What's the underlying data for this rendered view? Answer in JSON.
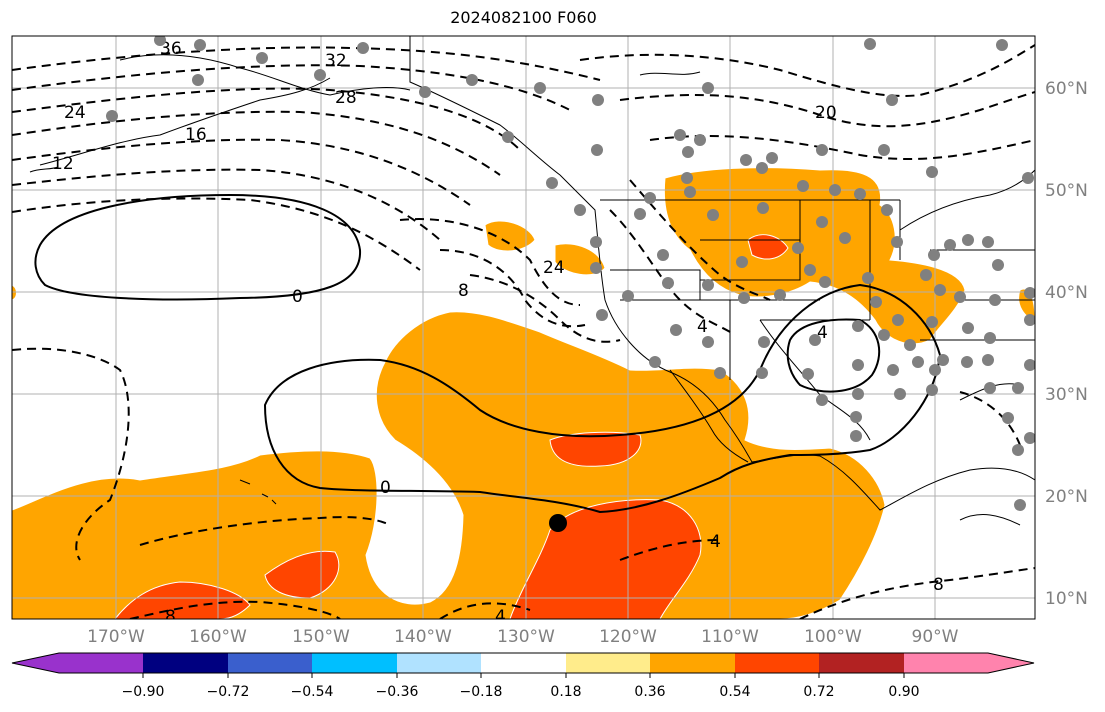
{
  "title": "2024082100 F060",
  "map": {
    "lon_labels": [
      "170°W",
      "160°W",
      "150°W",
      "140°W",
      "130°W",
      "120°W",
      "110°W",
      "100°W",
      "90°W"
    ],
    "lat_labels": [
      "60°N",
      "50°N",
      "40°N",
      "30°N",
      "20°N",
      "10°N"
    ],
    "contour_labels": [
      "36",
      "32",
      "28",
      "24",
      "12",
      "16",
      "20",
      "0",
      "8",
      "24",
      "4",
      "4",
      "0",
      "4",
      "8",
      "8",
      "4"
    ]
  },
  "colorbar": {
    "colors": [
      "#9932cc",
      "#000080",
      "#3a5fcd",
      "#00bfff",
      "#b0e2ff",
      "#ffffff",
      "#ffec8b",
      "#ffa500",
      "#ff4500",
      "#b22222",
      "#ff83ad"
    ],
    "tick_labels": [
      "−0.90",
      "−0.72",
      "−0.54",
      "−0.36",
      "−0.18",
      "0.18",
      "0.36",
      "0.54",
      "0.72",
      "0.90"
    ]
  }
}
